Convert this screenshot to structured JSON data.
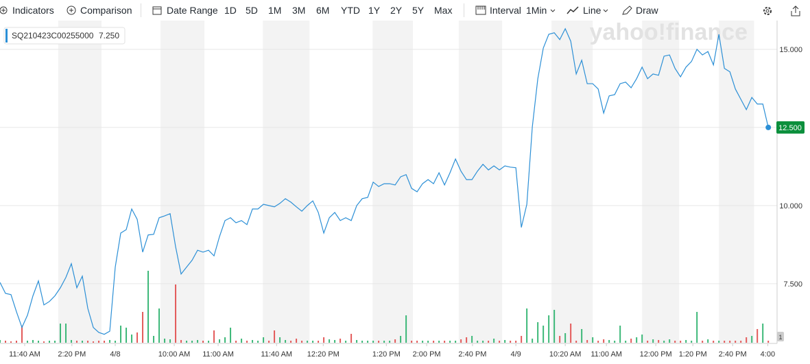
{
  "toolbar": {
    "indicators": "Indicators",
    "comparison": "Comparison",
    "date_range": "Date Range",
    "ranges": [
      "1D",
      "5D",
      "1M",
      "3M",
      "6M",
      "YTD",
      "1Y",
      "2Y",
      "5Y",
      "Max"
    ],
    "interval": "Interval",
    "interval_value": "1Min",
    "chart_style": "Line",
    "draw": "Draw"
  },
  "chart_data": {
    "type": "line",
    "watermark": "yahoo!finance",
    "series": [
      {
        "name": "SQ210423C00255000",
        "legend_value": "7.250",
        "color": "#2b8fd6",
        "values": [
          7.54,
          7.19,
          7.15,
          6.6,
          6.1,
          6.49,
          7.11,
          7.59,
          6.82,
          6.93,
          7.11,
          7.37,
          7.7,
          8.14,
          7.37,
          7.74,
          6.71,
          6.1,
          5.94,
          5.88,
          5.98,
          8.03,
          9.12,
          9.23,
          9.89,
          9.56,
          8.51,
          9.06,
          9.08,
          9.61,
          9.67,
          9.74,
          8.68,
          7.81,
          8.03,
          8.25,
          8.57,
          8.51,
          8.57,
          8.39,
          9.01,
          9.52,
          9.61,
          9.45,
          9.52,
          9.39,
          9.89,
          9.89,
          10.04,
          10.0,
          9.96,
          10.07,
          10.22,
          10.11,
          9.96,
          9.82,
          10.0,
          10.15,
          9.78,
          9.12,
          9.61,
          9.78,
          9.52,
          9.61,
          9.52,
          10.0,
          10.22,
          10.26,
          10.75,
          10.61,
          10.7,
          10.7,
          10.66,
          10.92,
          10.99,
          10.55,
          10.44,
          10.7,
          10.83,
          10.7,
          11.05,
          10.66,
          11.05,
          11.49,
          11.1,
          10.83,
          10.83,
          11.1,
          11.32,
          11.14,
          11.27,
          11.14,
          11.27,
          11.23,
          11.21,
          9.3,
          10.04,
          12.52,
          14.06,
          15.04,
          15.48,
          15.53,
          15.31,
          15.66,
          15.26,
          14.21,
          14.65,
          13.9,
          13.9,
          13.73,
          12.96,
          13.51,
          13.55,
          13.9,
          13.95,
          13.77,
          14.06,
          14.43,
          14.06,
          14.21,
          14.17,
          14.78,
          14.82,
          14.39,
          14.12,
          14.43,
          14.61,
          15.0,
          14.82,
          14.93,
          14.5,
          15.48,
          14.39,
          14.28,
          13.73,
          13.4,
          13.07,
          13.46,
          13.25,
          13.25,
          12.5
        ]
      }
    ],
    "current_price": {
      "value": 12.5,
      "label": "12.500",
      "color": "#0b8f3c"
    },
    "volume": {
      "up_color": "#3cb878",
      "down_color": "#e35a5a",
      "scale_label": "1",
      "values": [
        4,
        3,
        2,
        3,
        25,
        3,
        4,
        3,
        2,
        3,
        3,
        28,
        28,
        4,
        3,
        3,
        3,
        2,
        3,
        3,
        4,
        3,
        25,
        22,
        12,
        15,
        45,
        105,
        10,
        50,
        6,
        5,
        85,
        4,
        3,
        3,
        4,
        3,
        3,
        18,
        5,
        8,
        22,
        3,
        6,
        3,
        4,
        3,
        8,
        3,
        18,
        8,
        4,
        3,
        6,
        3,
        3,
        3,
        3,
        8,
        5,
        4,
        6,
        3,
        13,
        4,
        3,
        3,
        3,
        3,
        3,
        3,
        5,
        10,
        40,
        3,
        3,
        3,
        3,
        3,
        3,
        3,
        3,
        3,
        5,
        8,
        10,
        3,
        3,
        3,
        6,
        3,
        4,
        3,
        3,
        10,
        50,
        6,
        30,
        25,
        40,
        48,
        10,
        14,
        28,
        3,
        20,
        4,
        8,
        3,
        5,
        4,
        3,
        25,
        3,
        6,
        8,
        12,
        3,
        5,
        4,
        3,
        5,
        3,
        3,
        4,
        3,
        45,
        3,
        5,
        3,
        3,
        3,
        3,
        3,
        3,
        8,
        10,
        20,
        28,
        3
      ]
    },
    "xlim": [
      0,
      141.6
    ],
    "xticks": [
      {
        "value": 4.5,
        "label": "11:40 AM"
      },
      {
        "value": 13.1,
        "label": "2:20 PM"
      },
      {
        "value": 21,
        "label": "4/8"
      },
      {
        "value": 31.75,
        "label": "10:00 AM"
      },
      {
        "value": 39.75,
        "label": "11:00 AM"
      },
      {
        "value": 50.4,
        "label": "11:40 AM"
      },
      {
        "value": 58.9,
        "label": "12:20 PM"
      },
      {
        "value": 70.4,
        "label": "1:20 PM"
      },
      {
        "value": 77.75,
        "label": "2:00 PM"
      },
      {
        "value": 86.1,
        "label": "2:40 PM"
      },
      {
        "value": 94,
        "label": "4/9"
      },
      {
        "value": 103,
        "label": "10:20 AM"
      },
      {
        "value": 110.5,
        "label": "11:00 AM"
      },
      {
        "value": 119.5,
        "label": "12:00 PM"
      },
      {
        "value": 126.25,
        "label": "1:20 PM"
      },
      {
        "value": 133.5,
        "label": "2:40 PM"
      },
      {
        "value": 139.9,
        "label": "4:00"
      }
    ],
    "ylim": [
      5.61,
      15.92
    ],
    "yticks": [
      {
        "value": 7.5,
        "label": "7.500"
      },
      {
        "value": 10,
        "label": "10.000"
      },
      {
        "value": 12.5,
        "label": "12.500"
      },
      {
        "value": 15,
        "label": "15.000"
      }
    ],
    "grid": true
  }
}
